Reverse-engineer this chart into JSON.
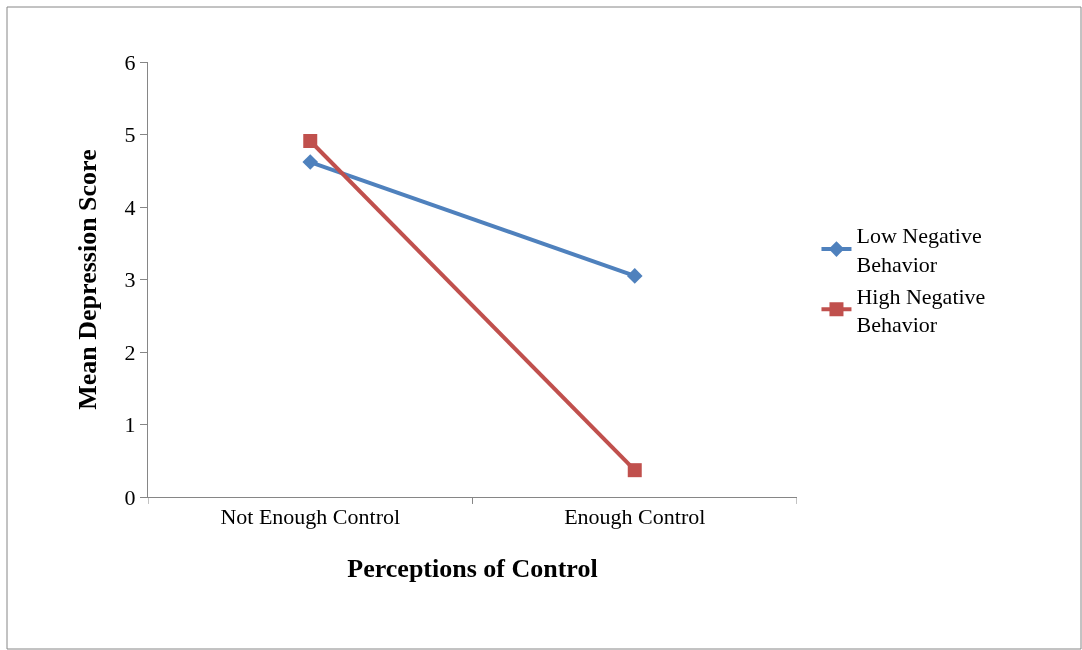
{
  "chart_data": {
    "type": "line",
    "xlabel": "Perceptions of Control",
    "ylabel": "Mean Depression Score",
    "categories": [
      "Not Enough Control",
      "Enough Control"
    ],
    "series": [
      {
        "name": "Low Negative Behavior",
        "color": "#4f81bd",
        "marker": "diamond",
        "values": [
          4.62,
          3.05
        ]
      },
      {
        "name": "High Negative Behavior",
        "color": "#c0504d",
        "marker": "square",
        "values": [
          4.91,
          0.37
        ]
      }
    ],
    "ylim": [
      0,
      6
    ],
    "yticks": [
      0,
      1,
      2,
      3,
      4,
      5,
      6
    ],
    "legend": "right",
    "line_style": "solid"
  }
}
